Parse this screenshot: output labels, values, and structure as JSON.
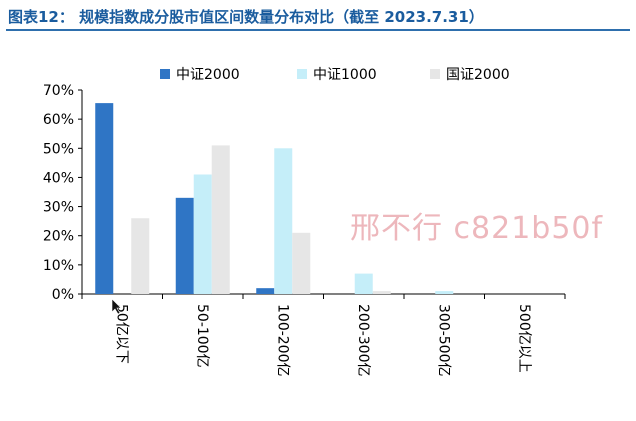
{
  "header": {
    "title": "图表12：  规模指数成分股市值区间数量分布对比（截至 2023.7.31）"
  },
  "watermark": {
    "text": "邢不行 c821b50f"
  },
  "chart_data": {
    "type": "bar",
    "categories": [
      "50亿以下",
      "50-100亿",
      "100-200亿",
      "200-300亿",
      "300-500亿",
      "500亿以上"
    ],
    "series": [
      {
        "name": "中证2000",
        "values": [
          65.5,
          33,
          2,
          0,
          0,
          0
        ],
        "color": "#2f75c5"
      },
      {
        "name": "中证1000",
        "values": [
          0,
          41,
          50,
          7,
          1,
          0
        ],
        "color": "#c5eef9"
      },
      {
        "name": "国证2000",
        "values": [
          26,
          51,
          21,
          1,
          0,
          0
        ],
        "color": "#e6e6e6"
      }
    ],
    "ylim": [
      0,
      70
    ],
    "yticks": [
      "0%",
      "10%",
      "20%",
      "30%",
      "40%",
      "50%",
      "60%",
      "70%"
    ],
    "legend_position": "top",
    "grid": false
  }
}
